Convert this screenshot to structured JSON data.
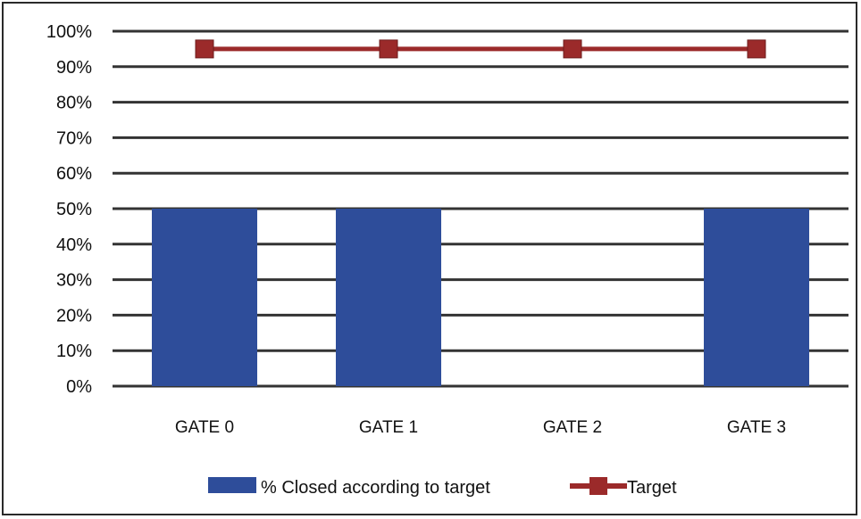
{
  "chart_data": {
    "type": "bar",
    "categories": [
      "GATE 0",
      "GATE 1",
      "GATE 2",
      "GATE 3"
    ],
    "series": [
      {
        "name": "% Closed according to target",
        "kind": "bar",
        "values": [
          50,
          50,
          0,
          50
        ],
        "color": "#2e4d9a"
      },
      {
        "name": "Target",
        "kind": "line",
        "values": [
          95,
          95,
          95,
          95
        ],
        "color": "#9b2a2a"
      }
    ],
    "ylim": [
      0,
      100
    ],
    "yticks": [
      "0%",
      "10%",
      "20%",
      "30%",
      "40%",
      "50%",
      "60%",
      "70%",
      "80%",
      "90%",
      "100%"
    ],
    "grid": true,
    "legend": "bottom"
  }
}
